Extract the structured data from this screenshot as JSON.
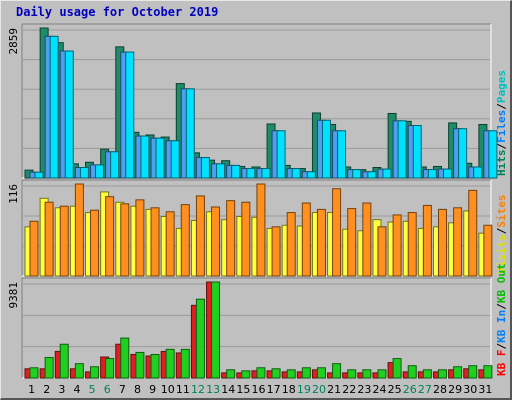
{
  "title": "Daily usage for October 2019",
  "colors": {
    "hits": "#00805c",
    "files": "#0080ff",
    "pages": "#00c0c0",
    "visits": "#ffff00",
    "sites": "#ff8000",
    "kb_in": "#00c000",
    "kb_out": "#ff0000",
    "weekend": "#00805c",
    "weekday": "#000000"
  },
  "chart_data": [
    {
      "type": "bar",
      "ymax_label": "2859",
      "legend": [
        {
          "label": "Hits",
          "color": "#00805c"
        },
        {
          "label": "/",
          "color": "#000000"
        },
        {
          "label": "Files",
          "color": "#0080ff"
        },
        {
          "label": "/",
          "color": "#000000"
        },
        {
          "label": "Pages",
          "color": "#00c0c0"
        }
      ],
      "categories": [
        "1",
        "2",
        "3",
        "4",
        "5",
        "6",
        "7",
        "8",
        "9",
        "10",
        "11",
        "12",
        "13",
        "14",
        "15",
        "16",
        "17",
        "18",
        "19",
        "20",
        "21",
        "22",
        "23",
        "24",
        "25",
        "26",
        "27",
        "28",
        "29",
        "30",
        "31"
      ],
      "weekend": [
        5,
        6,
        12,
        13,
        19,
        20,
        26,
        27
      ],
      "ylim": [
        0,
        2859
      ],
      "series": [
        {
          "name": "Hits",
          "color": "#1e8c6a",
          "values": [
            150,
            2859,
            2580,
            270,
            300,
            550,
            2500,
            870,
            820,
            780,
            1800,
            480,
            340,
            330,
            220,
            210,
            1030,
            240,
            180,
            1240,
            1020,
            210,
            160,
            200,
            1230,
            1080,
            210,
            220,
            1050,
            280,
            1020
          ]
        },
        {
          "name": "Files",
          "color": "#4da0f0",
          "values": [
            110,
            2700,
            2420,
            200,
            250,
            500,
            2400,
            800,
            760,
            710,
            1700,
            390,
            270,
            240,
            180,
            180,
            900,
            180,
            120,
            1100,
            900,
            160,
            120,
            170,
            1090,
            1000,
            160,
            170,
            940,
            210,
            900
          ]
        },
        {
          "name": "Pages",
          "color": "#00e0ff",
          "values": [
            110,
            2700,
            2420,
            200,
            250,
            500,
            2400,
            800,
            760,
            710,
            1700,
            390,
            270,
            240,
            180,
            180,
            900,
            180,
            120,
            1100,
            900,
            160,
            120,
            170,
            1090,
            1000,
            160,
            170,
            940,
            210,
            900
          ]
        }
      ]
    },
    {
      "type": "bar",
      "ymax_label": "116",
      "legend": [
        {
          "label": "Visits",
          "color": "#e0e000"
        },
        {
          "label": "/",
          "color": "#000000"
        },
        {
          "label": "Sites",
          "color": "#ff8000"
        }
      ],
      "categories": [
        "1",
        "2",
        "3",
        "4",
        "5",
        "6",
        "7",
        "8",
        "9",
        "10",
        "11",
        "12",
        "13",
        "14",
        "15",
        "16",
        "17",
        "18",
        "19",
        "20",
        "21",
        "22",
        "23",
        "24",
        "25",
        "26",
        "27",
        "28",
        "29",
        "30",
        "31"
      ],
      "weekend": [
        5,
        6,
        12,
        13,
        19,
        20,
        26,
        27
      ],
      "ylim": [
        0,
        116
      ],
      "series": [
        {
          "name": "Visits",
          "color": "#ffff40",
          "values": [
            62,
            98,
            86,
            88,
            80,
            106,
            93,
            88,
            84,
            75,
            60,
            70,
            81,
            71,
            75,
            74,
            60,
            64,
            63,
            80,
            80,
            59,
            57,
            71,
            68,
            69,
            60,
            62,
            67,
            82,
            54
          ]
        },
        {
          "name": "Sites",
          "color": "#ff9020",
          "values": [
            69,
            93,
            88,
            116,
            83,
            100,
            91,
            96,
            86,
            81,
            90,
            101,
            87,
            95,
            93,
            116,
            62,
            80,
            92,
            84,
            110,
            85,
            92,
            62,
            77,
            80,
            89,
            84,
            86,
            108,
            64
          ]
        }
      ]
    },
    {
      "type": "bar",
      "ymax_label": "9381",
      "legend": [
        {
          "label": "KB F",
          "color": "#ff0000"
        },
        {
          "label": "/",
          "color": "#000000"
        },
        {
          "label": "KB In",
          "color": "#0080ff"
        },
        {
          "label": "/",
          "color": "#000000"
        },
        {
          "label": "KB Out",
          "color": "#00c000"
        }
      ],
      "categories": [
        "1",
        "2",
        "3",
        "4",
        "5",
        "6",
        "7",
        "8",
        "9",
        "10",
        "11",
        "12",
        "13",
        "14",
        "15",
        "16",
        "17",
        "18",
        "19",
        "20",
        "21",
        "22",
        "23",
        "24",
        "25",
        "26",
        "27",
        "28",
        "29",
        "30",
        "31"
      ],
      "weekend": [
        5,
        6,
        12,
        13,
        19,
        20,
        26,
        27
      ],
      "ylim": [
        0,
        9381
      ],
      "series": [
        {
          "name": "KB F",
          "color": "#e02020",
          "values": [
            900,
            900,
            2600,
            900,
            600,
            2050,
            3300,
            2300,
            2150,
            2600,
            2450,
            7100,
            9381,
            500,
            500,
            700,
            700,
            600,
            600,
            800,
            500,
            500,
            500,
            500,
            1500,
            600,
            600,
            600,
            800,
            900,
            800
          ]
        },
        {
          "name": "KB Out",
          "color": "#20d020",
          "values": [
            1000,
            2000,
            3300,
            1400,
            1100,
            1900,
            3900,
            2500,
            2300,
            2800,
            2800,
            7700,
            9381,
            800,
            700,
            1000,
            900,
            800,
            1000,
            1000,
            1400,
            800,
            800,
            800,
            1900,
            1200,
            800,
            800,
            1100,
            1200,
            1200
          ]
        }
      ]
    }
  ]
}
